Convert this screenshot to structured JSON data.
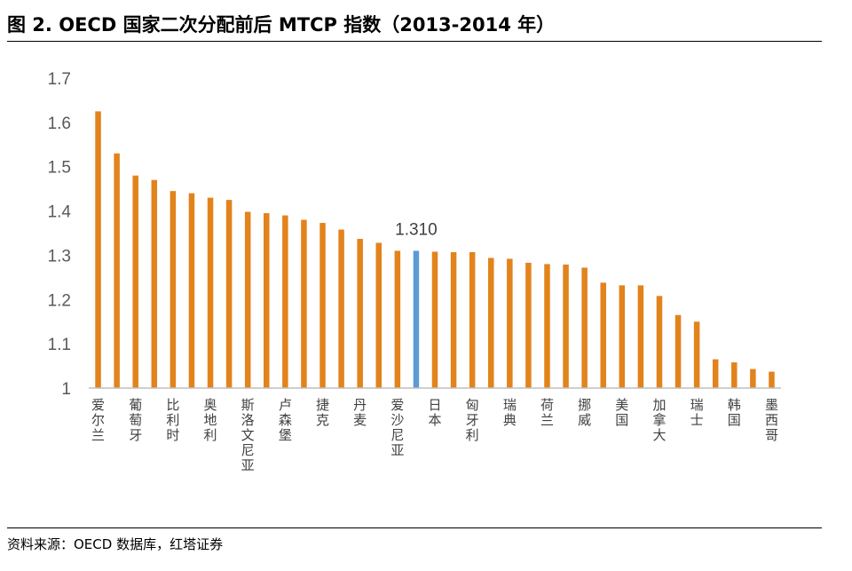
{
  "title": "图 2. OECD 国家二次分配前后 MTCP 指数（2013-2014 年）",
  "source": "资料来源：OECD 数据库，红塔证券",
  "colors": {
    "bar": "#e2831c",
    "highlight": "#5b9bd5"
  },
  "chart_data": {
    "type": "bar",
    "categories": [
      "爱尔兰",
      "",
      "葡萄牙",
      "",
      "比利时",
      "",
      "奥地利",
      "",
      "斯洛文尼亚",
      "",
      "卢森堡",
      "",
      "捷克",
      "",
      "丹麦",
      "",
      "爱沙尼亚",
      "",
      "日本",
      "",
      "匈牙利",
      "",
      "瑞典",
      "",
      "荷兰",
      "",
      "挪威",
      "",
      "美国",
      "",
      "加拿大",
      "",
      "瑞士",
      "",
      "韩国",
      "",
      "墨西哥"
    ],
    "values": [
      1.625,
      1.53,
      1.48,
      1.47,
      1.445,
      1.44,
      1.43,
      1.425,
      1.398,
      1.395,
      1.39,
      1.38,
      1.373,
      1.358,
      1.337,
      1.328,
      1.31,
      1.31,
      1.308,
      1.307,
      1.307,
      1.294,
      1.292,
      1.283,
      1.28,
      1.279,
      1.272,
      1.238,
      1.232,
      1.232,
      1.208,
      1.165,
      1.15,
      1.065,
      1.058,
      1.043,
      1.037
    ],
    "highlight_index": 17,
    "data_label": "1.310",
    "ylim": [
      1,
      1.7
    ],
    "yticks": [
      "1",
      "1.1",
      "1.2",
      "1.3",
      "1.4",
      "1.5",
      "1.6",
      "1.7"
    ],
    "grid": false,
    "legend": "none"
  }
}
